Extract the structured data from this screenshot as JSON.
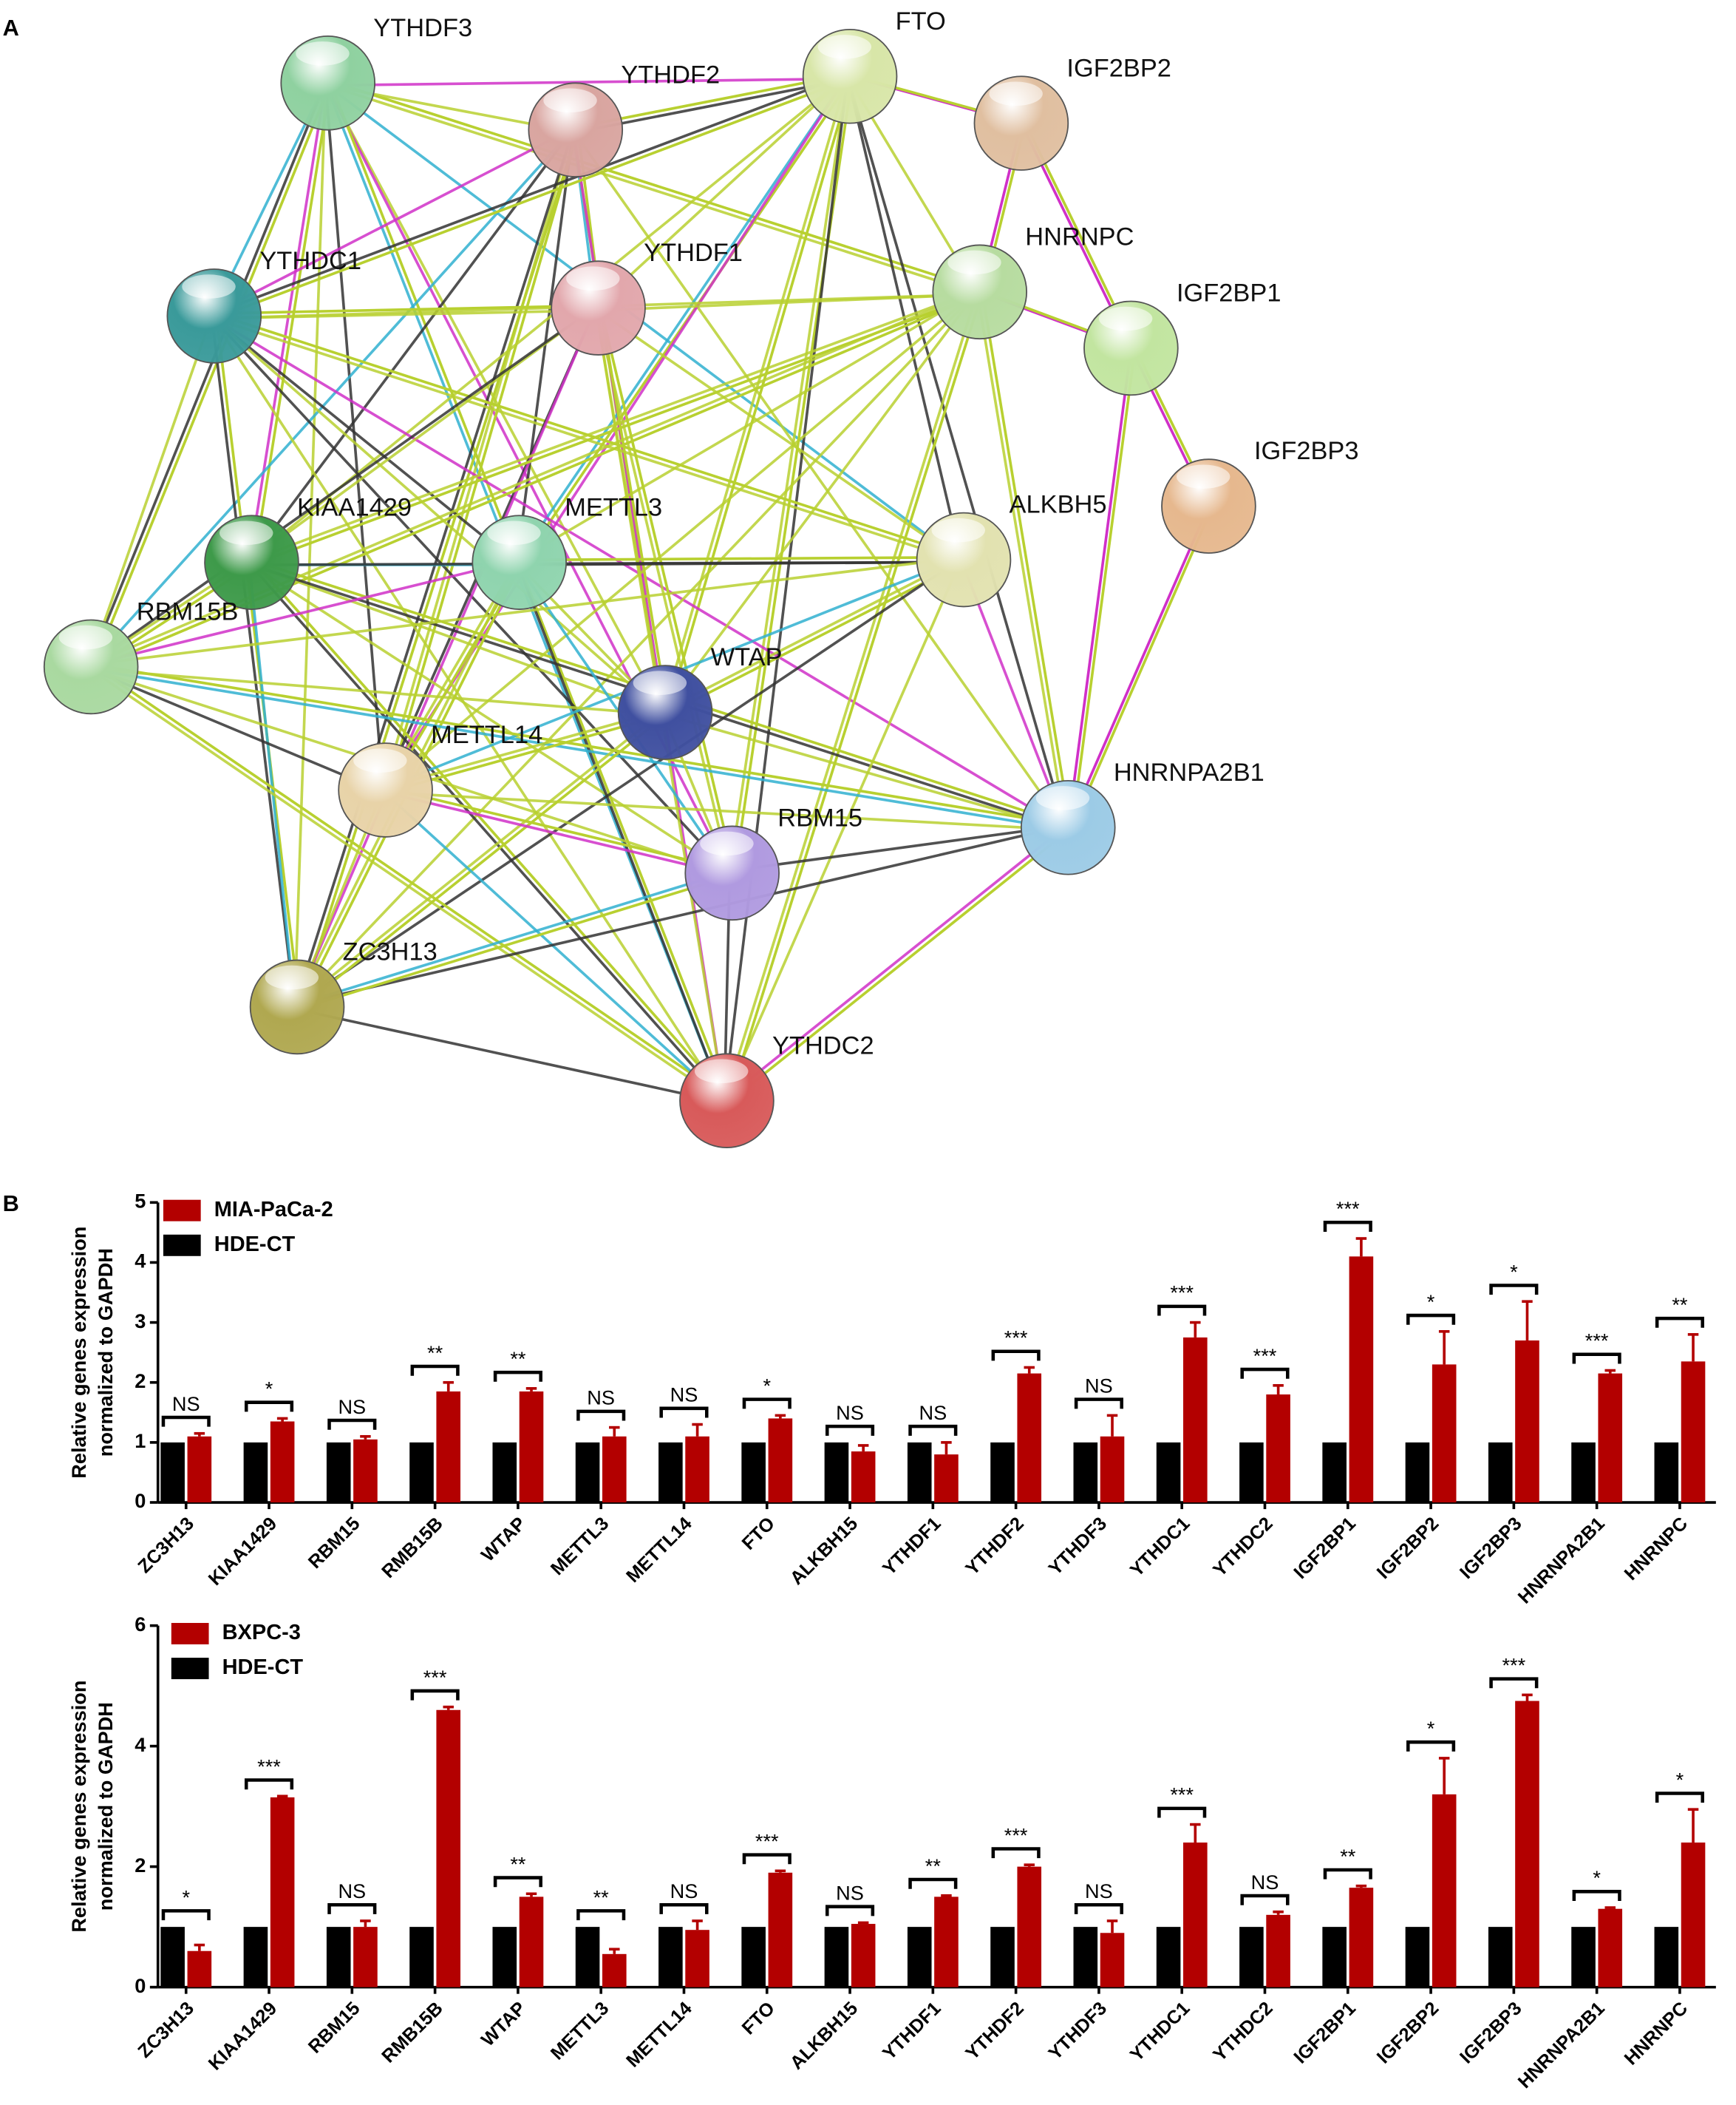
{
  "panel_a": {
    "label": "A",
    "nodes": [
      {
        "label": "YTHDF3"
      },
      {
        "label": "YTHDF2"
      },
      {
        "label": "FTO"
      },
      {
        "label": "IGF2BP2"
      },
      {
        "label": "YTHDC1"
      },
      {
        "label": "YTHDF1"
      },
      {
        "label": "HNRNPC"
      },
      {
        "label": "IGF2BP1"
      },
      {
        "label": "IGF2BP3"
      },
      {
        "label": "KIAA1429"
      },
      {
        "label": "METTL3"
      },
      {
        "label": "ALKBH5"
      },
      {
        "label": "RBM15B"
      },
      {
        "label": "WTAP"
      },
      {
        "label": "METTL14"
      },
      {
        "label": "HNRNPA2B1"
      },
      {
        "label": "RBM15"
      },
      {
        "label": "ZC3H13"
      },
      {
        "label": "YTHDC2"
      }
    ]
  },
  "panel_b": {
    "label": "B"
  },
  "chart_data": [
    {
      "type": "bar",
      "y_label": [
        "Relative genes expression",
        "normalized to GAPDH"
      ],
      "categories": [
        "ZC3H13",
        "KIAA1429",
        "RBM15",
        "RMB15B",
        "WTAP",
        "METTL3",
        "METTL14",
        "FTO",
        "ALKBH15",
        "YTHDF1",
        "YTHDF2",
        "YTHDF3",
        "YTHDC1",
        "YTHDC2",
        "IGF2BP1",
        "IGF2BP2",
        "IGF2BP3",
        "HNRNPA2B1",
        "HNRNPC"
      ],
      "series": [
        {
          "name": "MIA-PaCa-2",
          "color": "#b30000",
          "values": [
            1.1,
            1.35,
            1.05,
            1.85,
            1.85,
            1.1,
            1.1,
            1.4,
            0.85,
            0.8,
            2.15,
            1.1,
            2.75,
            1.8,
            4.1,
            2.3,
            2.7,
            2.15,
            2.35
          ],
          "errors": [
            0.05,
            0.05,
            0.05,
            0.15,
            0.05,
            0.15,
            0.2,
            0.05,
            0.1,
            0.2,
            0.1,
            0.35,
            0.25,
            0.15,
            0.3,
            0.55,
            0.65,
            0.05,
            0.45
          ]
        },
        {
          "name": "HDE-CT",
          "color": "#000000",
          "values": [
            1,
            1,
            1,
            1,
            1,
            1,
            1,
            1,
            1,
            1,
            1,
            1,
            1,
            1,
            1,
            1,
            1,
            1,
            1
          ]
        }
      ],
      "annotations": [
        "NS",
        "*",
        "NS",
        "**",
        "**",
        "NS",
        "NS",
        "*",
        "NS",
        "NS",
        "***",
        "NS",
        "***",
        "***",
        "***",
        "*",
        "*",
        "***",
        "**"
      ],
      "ylim": [
        0,
        5
      ],
      "yticks": [
        0,
        1,
        2,
        3,
        4,
        5
      ]
    },
    {
      "type": "bar",
      "y_label": [
        "Relative genes expression",
        "normalized to GAPDH"
      ],
      "categories": [
        "ZC3H13",
        "KIAA1429",
        "RBM15",
        "RMB15B",
        "WTAP",
        "METTL3",
        "METTL14",
        "FTO",
        "ALKBH15",
        "YTHDF1",
        "YTHDF2",
        "YTHDF3",
        "YTHDC1",
        "YTHDC2",
        "IGF2BP1",
        "IGF2BP2",
        "IGF2BP3",
        "HNRNPA2B1",
        "HNRNPC"
      ],
      "series": [
        {
          "name": "BXPC-3",
          "color": "#b30000",
          "values": [
            0.6,
            3.15,
            1.0,
            4.6,
            1.5,
            0.55,
            0.95,
            1.9,
            1.05,
            1.5,
            2.0,
            0.9,
            2.4,
            1.2,
            1.65,
            3.2,
            4.75,
            1.3,
            2.4
          ],
          "errors": [
            0.1,
            0.02,
            0.1,
            0.05,
            0.05,
            0.08,
            0.15,
            0.03,
            0.02,
            0.02,
            0.03,
            0.2,
            0.3,
            0.05,
            0.03,
            0.6,
            0.1,
            0.02,
            0.55
          ]
        },
        {
          "name": "HDE-CT",
          "color": "#000000",
          "values": [
            1,
            1,
            1,
            1,
            1,
            1,
            1,
            1,
            1,
            1,
            1,
            1,
            1,
            1,
            1,
            1,
            1,
            1,
            1
          ]
        }
      ],
      "annotations": [
        "*",
        "***",
        "NS",
        "***",
        "**",
        "**",
        "NS",
        "***",
        "NS",
        "**",
        "***",
        "NS",
        "***",
        "NS",
        "**",
        "*",
        "***",
        "*",
        "*"
      ],
      "ylim": [
        0,
        6
      ],
      "yticks": [
        0,
        2,
        4,
        6
      ]
    }
  ]
}
